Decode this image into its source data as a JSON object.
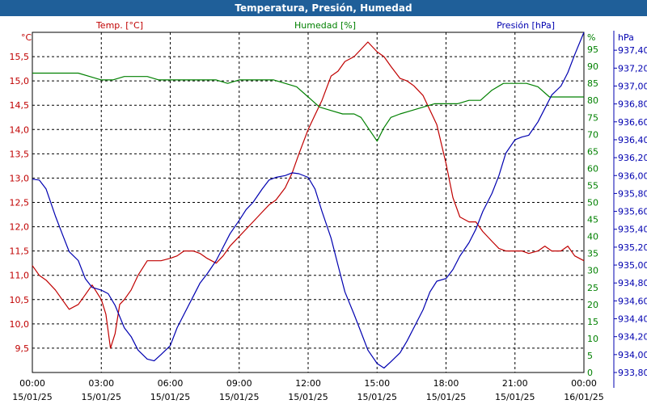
{
  "window": {
    "title": "Temperatura, Presión, Humedad"
  },
  "colors": {
    "temp": "#c00000",
    "hum": "#008000",
    "pres": "#0000b0",
    "title_bg": "#1f5f99",
    "grid": "#000000"
  },
  "chart_data": {
    "type": "line",
    "title": "Temperatura, Presión, Humedad",
    "x_ticks": [
      {
        "time": "00:00",
        "date": "15/01/25"
      },
      {
        "time": "03:00",
        "date": "15/01/25"
      },
      {
        "time": "06:00",
        "date": "15/01/25"
      },
      {
        "time": "09:00",
        "date": "15/01/25"
      },
      {
        "time": "12:00",
        "date": "15/01/25"
      },
      {
        "time": "15:00",
        "date": "15/01/25"
      },
      {
        "time": "18:00",
        "date": "15/01/25"
      },
      {
        "time": "21:00",
        "date": "15/01/25"
      },
      {
        "time": "00:00",
        "date": "16/01/25"
      }
    ],
    "xlim": [
      0,
      24
    ],
    "axes": {
      "temp": {
        "label": "Temp. [°C]",
        "unit": "°C",
        "ylim": [
          9.0,
          16.0
        ],
        "ticks": [
          "9,5",
          "10,0",
          "10,5",
          "11,0",
          "11,5",
          "12,0",
          "12,5",
          "13,0",
          "13,5",
          "14,0",
          "14,5",
          "15,0",
          "15,5"
        ]
      },
      "hum": {
        "label": "Humedad [%]",
        "unit": "%",
        "ylim": [
          0,
          100
        ],
        "ticks": [
          "0",
          "5",
          "10",
          "15",
          "20",
          "25",
          "30",
          "35",
          "40",
          "45",
          "50",
          "55",
          "60",
          "65",
          "70",
          "75",
          "80",
          "85",
          "90",
          "95"
        ]
      },
      "pres": {
        "label": "Presión [hPa]",
        "unit": "hPa",
        "ylim": [
          933.8,
          937.6
        ],
        "ticks": [
          "933,80",
          "934,00",
          "934,20",
          "934,40",
          "934,60",
          "934,80",
          "935,00",
          "935,20",
          "935,40",
          "935,60",
          "935,80",
          "936,00",
          "936,20",
          "936,40",
          "936,60",
          "936,80",
          "937,00",
          "937,20",
          "937,40"
        ]
      }
    },
    "series": [
      {
        "name": "Temp. [°C]",
        "axis": "temp",
        "x": [
          0,
          0.3,
          0.6,
          1,
          1.3,
          1.6,
          2,
          2.3,
          2.6,
          3,
          3.2,
          3.4,
          3.6,
          3.8,
          4,
          4.3,
          4.6,
          5,
          5.3,
          5.6,
          6,
          6.3,
          6.6,
          7,
          7.3,
          7.6,
          8,
          8.3,
          8.6,
          9,
          9.3,
          9.6,
          10,
          10.3,
          10.6,
          11,
          11.3,
          11.6,
          12,
          12.3,
          12.6,
          13,
          13.3,
          13.6,
          14,
          14.3,
          14.6,
          15,
          15.3,
          15.6,
          16,
          16.3,
          16.6,
          17,
          17.3,
          17.6,
          18,
          18.3,
          18.6,
          19,
          19.3,
          19.6,
          20,
          20.3,
          20.6,
          21,
          21.3,
          21.6,
          22,
          22.3,
          22.6,
          23,
          23.3,
          23.6,
          24
        ],
        "values": [
          11.2,
          11.0,
          10.9,
          10.7,
          10.5,
          10.3,
          10.4,
          10.6,
          10.8,
          10.5,
          10.2,
          9.5,
          9.8,
          10.4,
          10.5,
          10.7,
          11.0,
          11.3,
          11.3,
          11.3,
          11.35,
          11.4,
          11.5,
          11.5,
          11.45,
          11.35,
          11.25,
          11.4,
          11.6,
          11.8,
          11.95,
          12.1,
          12.3,
          12.45,
          12.55,
          12.8,
          13.1,
          13.5,
          14.0,
          14.3,
          14.6,
          15.1,
          15.2,
          15.4,
          15.5,
          15.65,
          15.8,
          15.6,
          15.5,
          15.3,
          15.05,
          15.0,
          14.9,
          14.7,
          14.4,
          14.1,
          13.3,
          12.6,
          12.2,
          12.1,
          12.1,
          11.9,
          11.7,
          11.55,
          11.5,
          11.5,
          11.5,
          11.45,
          11.5,
          11.6,
          11.5,
          11.5,
          11.6,
          11.4,
          11.3
        ]
      },
      {
        "name": "Humedad [%]",
        "axis": "hum",
        "x": [
          0,
          0.5,
          1,
          1.5,
          2,
          2.5,
          3,
          3.5,
          4,
          4.5,
          5,
          5.5,
          6,
          6.5,
          7,
          7.5,
          8,
          8.5,
          9,
          9.5,
          10,
          10.5,
          11,
          11.5,
          12,
          12.5,
          13,
          13.5,
          14,
          14.3,
          14.6,
          15,
          15.3,
          15.6,
          16,
          16.5,
          17,
          17.5,
          18,
          18.5,
          19,
          19.5,
          20,
          20.5,
          21,
          21.5,
          22,
          22.5,
          23,
          23.5,
          24
        ],
        "values": [
          88,
          88,
          88,
          88,
          88,
          87,
          86,
          86,
          87,
          87,
          87,
          86,
          86,
          86,
          86,
          86,
          86,
          85,
          86,
          86,
          86,
          86,
          85,
          84,
          81,
          78,
          77,
          76,
          76,
          75,
          72,
          68,
          72,
          75,
          76,
          77,
          78,
          79,
          79,
          79,
          80,
          80,
          83,
          85,
          85,
          85,
          84,
          81,
          81,
          81,
          81
        ]
      },
      {
        "name": "Presión [hPa]",
        "axis": "pres",
        "x": [
          0,
          0.3,
          0.6,
          1,
          1.3,
          1.6,
          2,
          2.3,
          2.6,
          3,
          3.3,
          3.6,
          4,
          4.3,
          4.6,
          5,
          5.3,
          5.6,
          6,
          6.3,
          6.6,
          7,
          7.3,
          7.6,
          8,
          8.3,
          8.6,
          9,
          9.3,
          9.6,
          10,
          10.3,
          10.6,
          11,
          11.3,
          11.6,
          12,
          12.3,
          12.6,
          13,
          13.3,
          13.6,
          14,
          14.3,
          14.6,
          15,
          15.3,
          15.6,
          16,
          16.3,
          16.6,
          17,
          17.3,
          17.6,
          18,
          18.3,
          18.6,
          19,
          19.3,
          19.6,
          20,
          20.3,
          20.6,
          21,
          21.3,
          21.6,
          22,
          22.3,
          22.6,
          23,
          23.3,
          23.6,
          24
        ],
        "values": [
          935.96,
          935.95,
          935.85,
          935.55,
          935.35,
          935.15,
          935.05,
          934.85,
          934.75,
          934.72,
          934.68,
          934.55,
          934.3,
          934.2,
          934.05,
          933.95,
          933.93,
          934.0,
          934.1,
          934.3,
          934.45,
          934.65,
          934.8,
          934.9,
          935.05,
          935.2,
          935.35,
          935.5,
          935.62,
          935.7,
          935.85,
          935.95,
          935.98,
          936.0,
          936.03,
          936.02,
          935.98,
          935.85,
          935.6,
          935.3,
          935.0,
          934.7,
          934.45,
          934.25,
          934.05,
          933.9,
          933.85,
          933.92,
          934.02,
          934.15,
          934.3,
          934.5,
          934.7,
          934.82,
          934.85,
          934.95,
          935.1,
          935.25,
          935.4,
          935.6,
          935.8,
          936.0,
          936.25,
          936.4,
          936.43,
          936.45,
          936.6,
          936.75,
          936.9,
          937.0,
          937.15,
          937.35,
          937.6
        ]
      }
    ],
    "grid": true
  }
}
